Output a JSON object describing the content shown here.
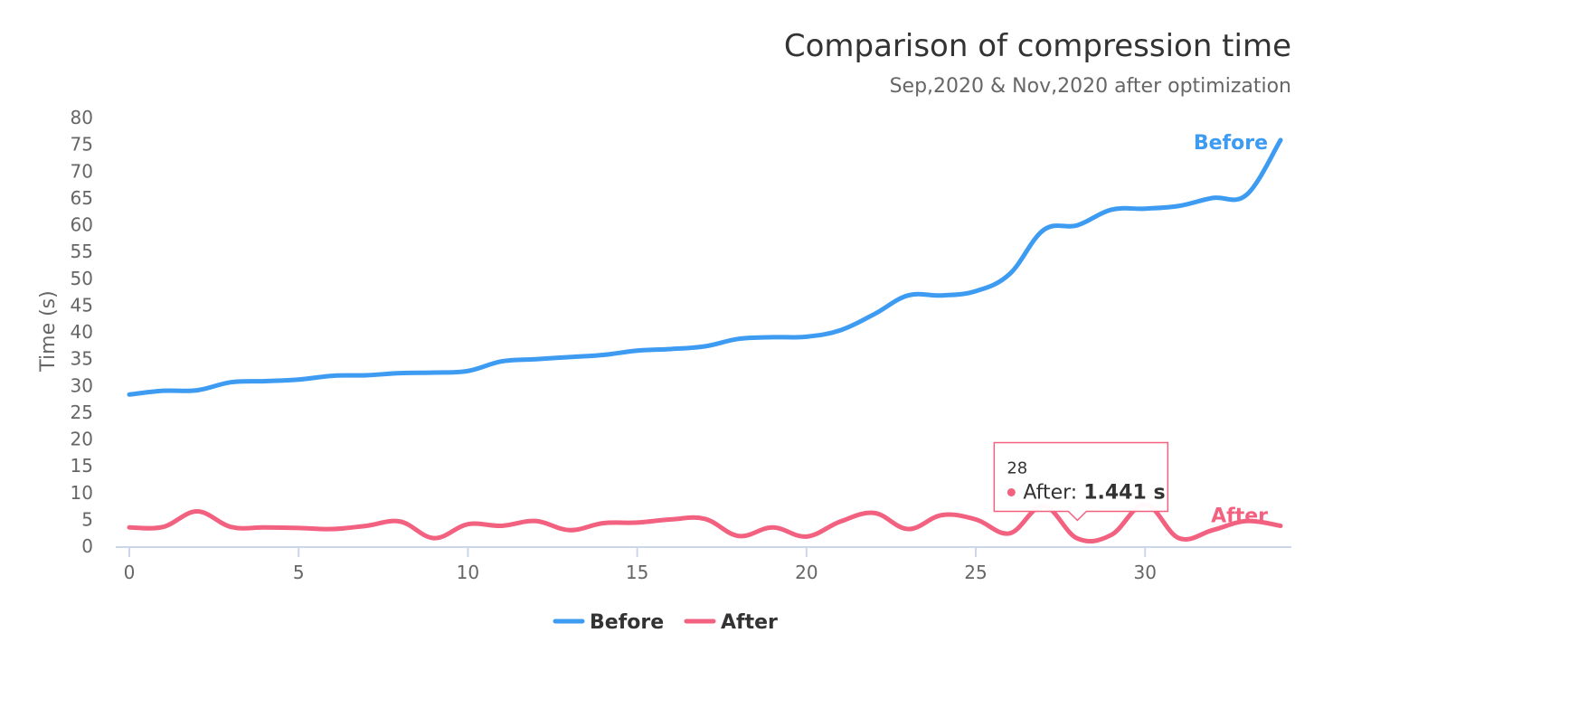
{
  "chart_data": {
    "type": "line",
    "title": "Comparison of compression time",
    "subtitle": "Sep,2020 & Nov,2020 after optimization",
    "xlabel": "",
    "ylabel": "Time (s)",
    "xlim": [
      0,
      34
    ],
    "ylim": [
      0,
      80
    ],
    "x_ticks": [
      0,
      5,
      10,
      15,
      20,
      25,
      30
    ],
    "y_ticks": [
      0,
      5,
      10,
      15,
      20,
      25,
      30,
      35,
      40,
      45,
      50,
      55,
      60,
      65,
      70,
      75,
      80
    ],
    "grid": false,
    "legend_position": "bottom-center",
    "x": [
      0,
      1,
      2,
      3,
      4,
      5,
      6,
      7,
      8,
      9,
      10,
      11,
      12,
      13,
      14,
      15,
      16,
      17,
      18,
      19,
      20,
      21,
      22,
      23,
      24,
      25,
      26,
      27,
      28,
      29,
      30,
      31,
      32,
      33,
      34
    ],
    "series": [
      {
        "name": "Before",
        "color": "#3d9bf2",
        "values": [
          28.3,
          29.0,
          29.1,
          30.6,
          30.8,
          31.1,
          31.8,
          31.9,
          32.3,
          32.4,
          32.7,
          34.5,
          34.9,
          35.3,
          35.7,
          36.5,
          36.8,
          37.3,
          38.7,
          39.0,
          39.1,
          40.3,
          43.3,
          46.8,
          46.8,
          47.6,
          50.8,
          59.0,
          59.9,
          62.8,
          63.0,
          63.5,
          65.0,
          65.6,
          75.8
        ]
      },
      {
        "name": "After",
        "color": "#f2617f",
        "values": [
          3.5,
          3.6,
          6.5,
          3.6,
          3.5,
          3.4,
          3.2,
          3.8,
          4.6,
          1.5,
          4.1,
          3.8,
          4.7,
          3.0,
          4.3,
          4.4,
          5.0,
          5.1,
          1.9,
          3.5,
          1.8,
          4.6,
          6.2,
          3.2,
          5.8,
          5.0,
          2.4,
          7.5,
          1.441,
          2.1,
          7.8,
          1.5,
          3.0,
          4.7,
          3.8
        ]
      }
    ],
    "tooltip": {
      "x_label": "28",
      "series_label": "After: ",
      "value_text": "1.441 s",
      "series_index": 1,
      "point_index": 28
    }
  }
}
